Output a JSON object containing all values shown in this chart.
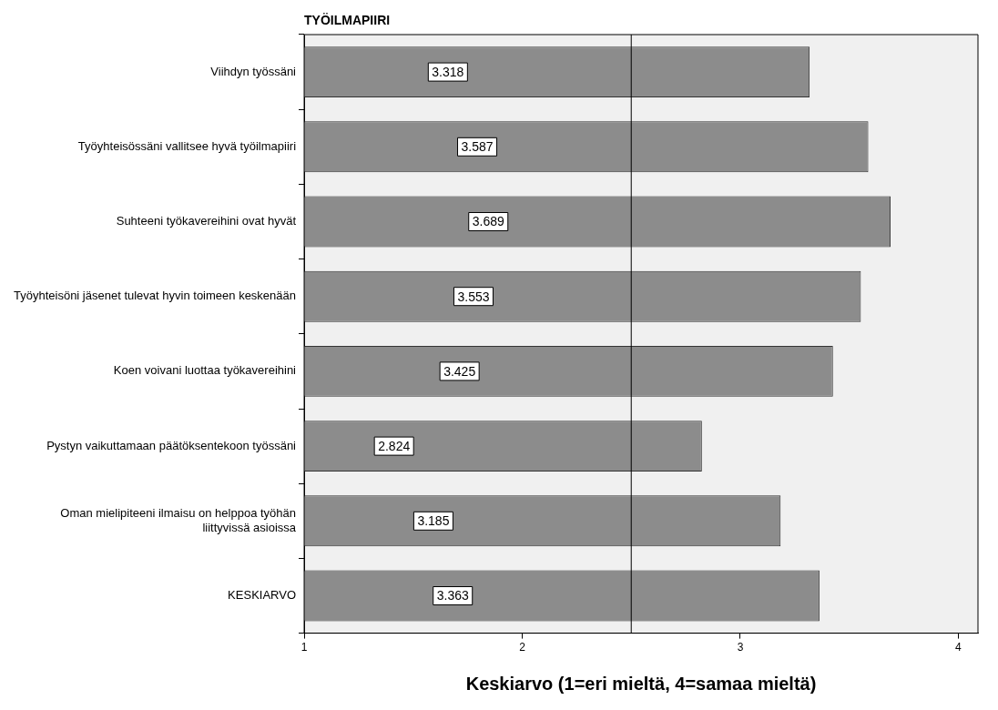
{
  "chart_data": {
    "type": "bar",
    "orientation": "horizontal",
    "title": "TYÖILMAPIIRI",
    "xlabel": "Keskiarvo (1=eri mieltä, 4=samaa mieltä)",
    "categories": [
      "Viihdyn työssäni",
      "Työyhteisössäni vallitsee hyvä työilmapiiri",
      "Suhteeni työkavereihini ovat hyvät",
      "Työyhteisöni jäsenet tulevat hyvin toimeen keskenään",
      "Koen voivani luottaa työkavereihini",
      "Pystyn vaikuttamaan päätöksentekoon työssäni",
      "Oman mielipiteeni ilmaisu on helppoa työhän liittyvissä asioissa",
      "KESKIARVO"
    ],
    "values": [
      3.318,
      3.587,
      3.689,
      3.553,
      3.425,
      2.824,
      3.185,
      3.363
    ],
    "color": "#8c8c8c",
    "xlim": [
      1,
      4.09
    ],
    "xticks": [
      1,
      2,
      3,
      4
    ],
    "grid": false,
    "data_labels": true,
    "legend": false,
    "ref_lines": [
      {
        "axis": "x",
        "value": 2.5,
        "color": "#000000"
      }
    ]
  }
}
